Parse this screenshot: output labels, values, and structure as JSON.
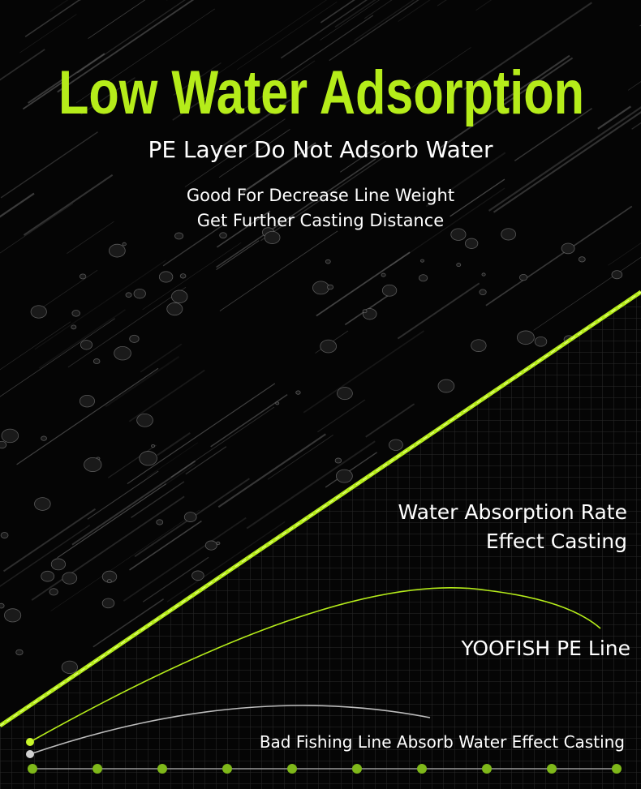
{
  "header": {
    "title": "Low Water Adsorption",
    "subtitle": "PE Layer Do Not Adsorb Water",
    "lines": [
      "Good For Decrease Line Weight",
      "Get Further Casting Distance"
    ]
  },
  "callout": {
    "lines": [
      "Water Absorption Rate",
      "Effect Casting"
    ]
  },
  "legend": {
    "good": "YOOFISH PE Line",
    "bad": "Bad Fishing Line Absorb Water Effect Casting"
  }
}
